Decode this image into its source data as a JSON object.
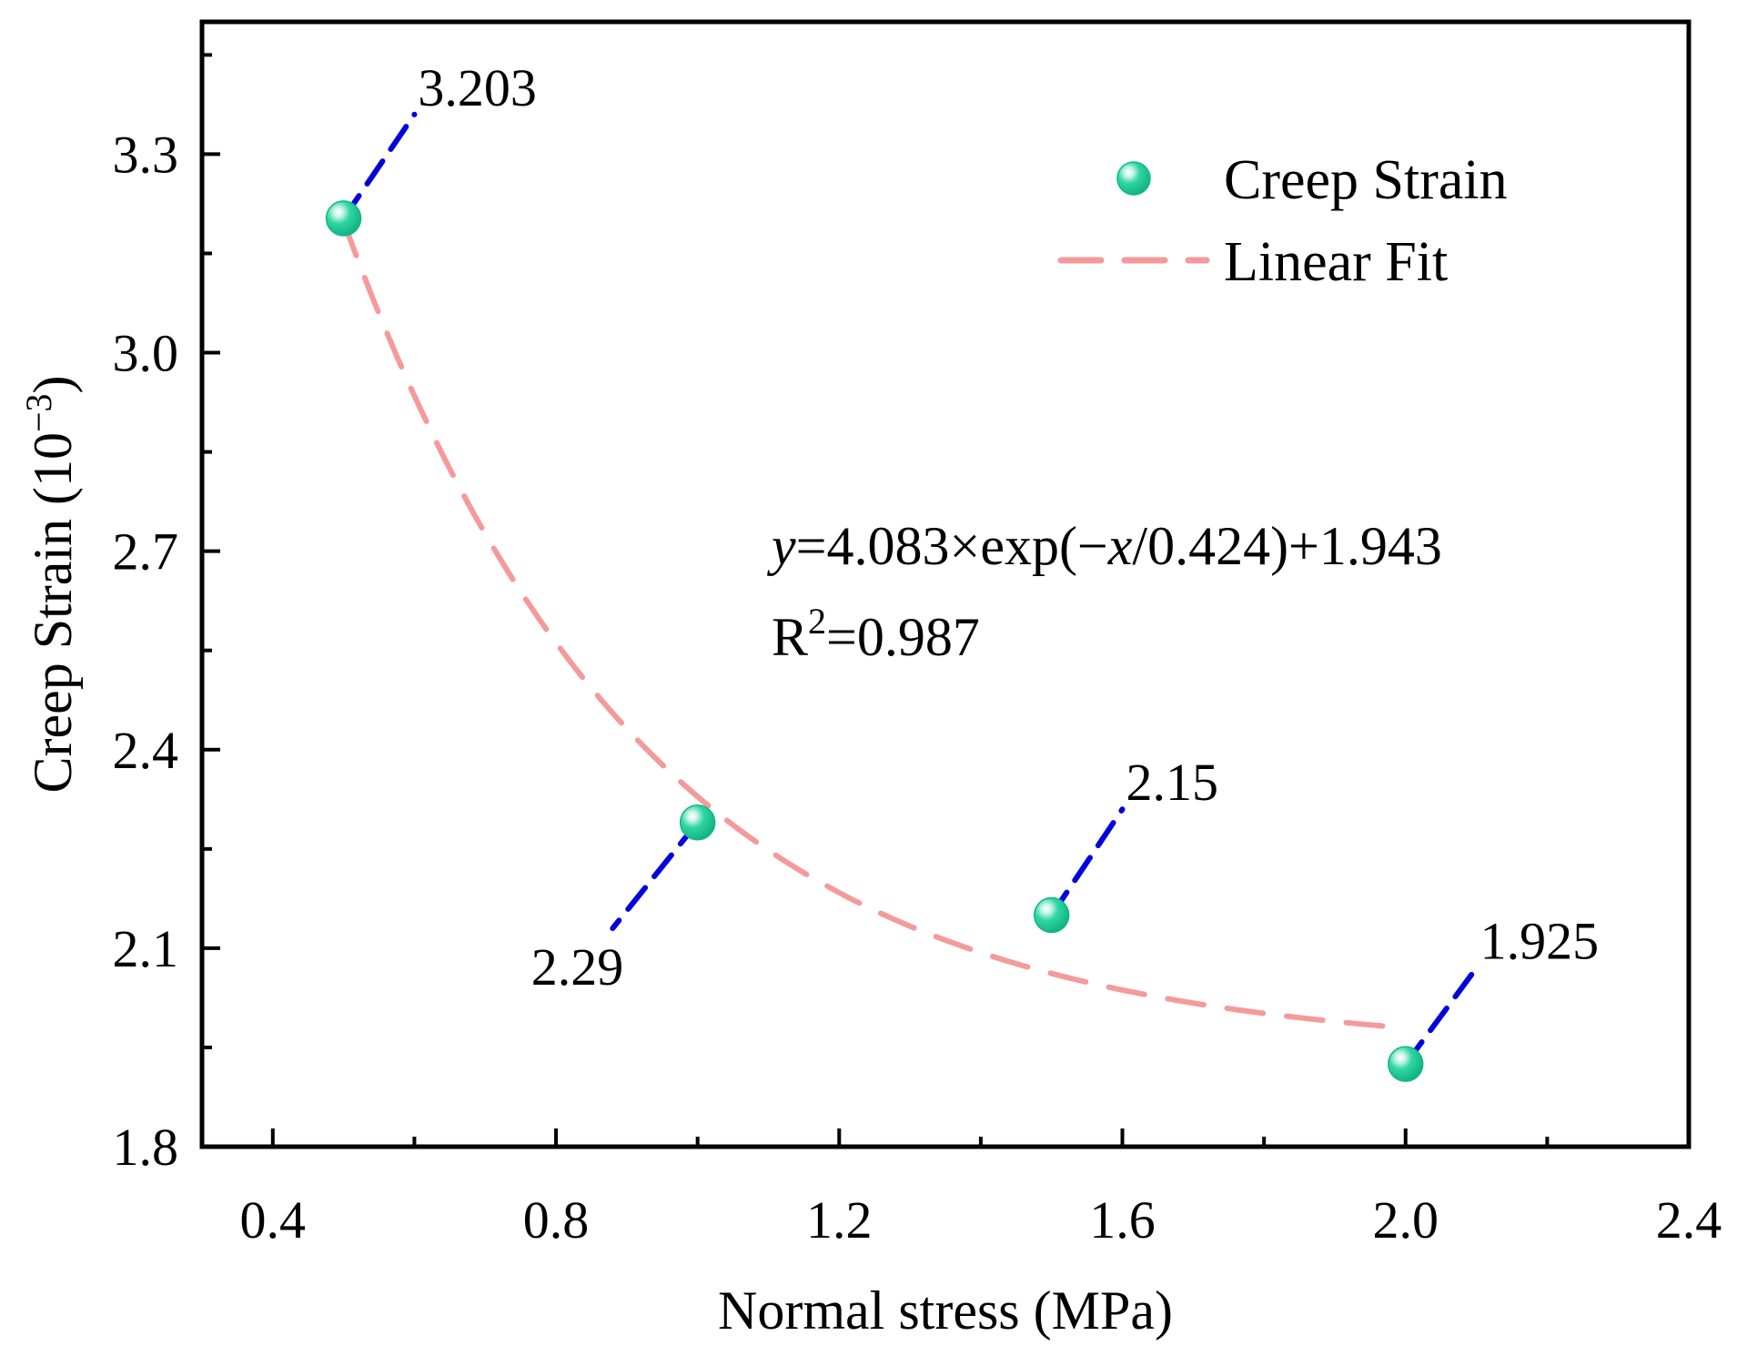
{
  "chart_data": {
    "type": "scatter",
    "title": "",
    "xlabel": "Normal stress (MPa)",
    "ylabel_main": "Creep Strain (10",
    "ylabel_exp": "−3",
    "ylabel_close": ")",
    "xlim": [
      0.3,
      2.4
    ],
    "ylim": [
      1.8,
      3.5
    ],
    "xticks": [
      0.4,
      0.8,
      1.2,
      1.6,
      2.0,
      2.4
    ],
    "xtick_labels": [
      "0.4",
      "0.8",
      "1.2",
      "1.6",
      "2.0",
      "2.4"
    ],
    "yticks": [
      1.8,
      2.1,
      2.4,
      2.7,
      3.0,
      3.3
    ],
    "ytick_labels": [
      "1.8",
      "2.1",
      "2.4",
      "2.7",
      "3.0",
      "3.3"
    ],
    "series": [
      {
        "name": "Creep Strain",
        "kind": "scatter",
        "color": "#1ecf9a",
        "x": [
          0.5,
          1.0,
          1.5,
          2.0
        ],
        "y": [
          3.203,
          2.29,
          2.15,
          1.925
        ]
      },
      {
        "name": "Linear Fit",
        "kind": "line",
        "color": "#f59a9a",
        "style": "dashed",
        "model": {
          "a": 4.083,
          "b": 0.424,
          "c": 1.943,
          "x_start": 0.5,
          "x_end": 2.0
        }
      }
    ],
    "annotations": [
      {
        "text": "3.203",
        "x": 0.5,
        "y": 3.203,
        "leader_to": [
          0.6,
          3.36
        ],
        "anchor": "above-right"
      },
      {
        "text": "2.29",
        "x": 1.0,
        "y": 2.29,
        "leader_to": [
          0.88,
          2.13
        ],
        "anchor": "below-left"
      },
      {
        "text": "2.15",
        "x": 1.5,
        "y": 2.15,
        "leader_to": [
          1.6,
          2.31
        ],
        "anchor": "above-right"
      },
      {
        "text": "1.925",
        "x": 2.0,
        "y": 1.925,
        "leader_to": [
          2.1,
          2.07
        ],
        "anchor": "above-right"
      }
    ],
    "leader_color": "#0000dd",
    "equation": {
      "y_var": "y",
      "part1": "=4.083×exp(−",
      "x_var": "x",
      "part2": "/0.424)+1.943",
      "r_label": "R",
      "r_exp": "2",
      "r_value": "=0.987"
    },
    "legend": {
      "position": "top-right"
    },
    "grid": false
  }
}
